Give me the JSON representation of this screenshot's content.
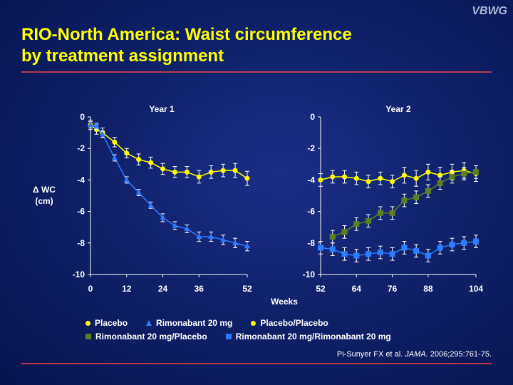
{
  "header": {
    "logo": "VBWG",
    "title_line1": "RIO-North America: Waist circumference",
    "title_line2": "by treatment assignment"
  },
  "colors": {
    "title": "#ffff00",
    "placebo": "#ffff00",
    "rimonabant": "#2e7cff",
    "rimo_placebo": "#5c7f22",
    "rule": "#b43a4a"
  },
  "chart_data": [
    {
      "type": "line",
      "title": "Year 1",
      "ylabel": "Δ WC\n(cm)",
      "xlabel": "",
      "xlim": [
        0,
        52
      ],
      "ylim": [
        -10,
        0
      ],
      "x_ticks": [
        "0",
        "12",
        "24",
        "36",
        "52"
      ],
      "y_ticks": [
        "0",
        "-2",
        "-4",
        "-6",
        "-8",
        "-10"
      ],
      "series": [
        {
          "name": "Placebo",
          "marker": "circle",
          "color": "#ffff00",
          "x": [
            0,
            2,
            4,
            8,
            12,
            16,
            20,
            24,
            28,
            32,
            36,
            40,
            44,
            48,
            52
          ],
          "y": [
            -0.5,
            -0.8,
            -1.0,
            -1.6,
            -2.3,
            -2.7,
            -2.9,
            -3.3,
            -3.5,
            -3.5,
            -3.8,
            -3.5,
            -3.4,
            -3.4,
            -3.9
          ],
          "err": [
            0.3,
            0.3,
            0.3,
            0.3,
            0.3,
            0.35,
            0.35,
            0.35,
            0.35,
            0.35,
            0.4,
            0.4,
            0.4,
            0.45,
            0.45
          ]
        },
        {
          "name": "Rimonabant 20 mg",
          "marker": "triangle",
          "color": "#2e7cff",
          "x": [
            0,
            2,
            4,
            8,
            12,
            16,
            20,
            24,
            28,
            32,
            36,
            40,
            44,
            48,
            52
          ],
          "y": [
            -0.5,
            -0.6,
            -1.1,
            -2.6,
            -4.0,
            -4.8,
            -5.6,
            -6.4,
            -6.9,
            -7.1,
            -7.6,
            -7.6,
            -7.8,
            -8.0,
            -8.2
          ],
          "err": [
            0.2,
            0.2,
            0.2,
            0.2,
            0.2,
            0.2,
            0.2,
            0.25,
            0.25,
            0.25,
            0.3,
            0.3,
            0.3,
            0.3,
            0.3
          ]
        }
      ]
    },
    {
      "type": "line",
      "title": "Year 2",
      "xlabel": "Weeks",
      "ylabel": "",
      "xlim": [
        52,
        104
      ],
      "ylim": [
        -10,
        0
      ],
      "x_ticks": [
        "52",
        "64",
        "76",
        "88",
        "104"
      ],
      "y_ticks": [
        "0",
        "-2",
        "-4",
        "-6",
        "-8",
        "-10"
      ],
      "series": [
        {
          "name": "Placebo/Placebo",
          "marker": "circle",
          "color": "#ffff00",
          "x": [
            52,
            56,
            60,
            64,
            68,
            72,
            76,
            80,
            84,
            88,
            92,
            96,
            100,
            104
          ],
          "y": [
            -4.0,
            -3.8,
            -3.8,
            -3.9,
            -4.1,
            -3.9,
            -4.1,
            -3.7,
            -3.9,
            -3.5,
            -3.7,
            -3.5,
            -3.4,
            -3.6
          ],
          "err": [
            0.4,
            0.4,
            0.4,
            0.4,
            0.4,
            0.4,
            0.4,
            0.5,
            0.5,
            0.5,
            0.5,
            0.5,
            0.5,
            0.5
          ]
        },
        {
          "name": "Rimonabant 20 mg/Placebo",
          "marker": "square",
          "color": "#5c7f22",
          "x": [
            56,
            60,
            64,
            68,
            72,
            76,
            80,
            84,
            88,
            92,
            96,
            100,
            104
          ],
          "y": [
            -7.6,
            -7.3,
            -6.8,
            -6.6,
            -6.1,
            -6.1,
            -5.3,
            -5.1,
            -4.7,
            -4.2,
            -3.8,
            -3.6,
            -3.5
          ],
          "err": [
            0.4,
            0.4,
            0.4,
            0.4,
            0.4,
            0.4,
            0.4,
            0.4,
            0.4,
            0.4,
            0.4,
            0.4,
            0.4
          ]
        },
        {
          "name": "Rimonabant 20 mg/Rimonabant 20 mg",
          "marker": "square",
          "color": "#2e7cff",
          "x": [
            52,
            56,
            60,
            64,
            68,
            72,
            76,
            80,
            84,
            88,
            92,
            96,
            100,
            104
          ],
          "y": [
            -8.3,
            -8.4,
            -8.7,
            -8.8,
            -8.7,
            -8.6,
            -8.7,
            -8.3,
            -8.5,
            -8.8,
            -8.3,
            -8.1,
            -8.0,
            -7.9
          ],
          "err": [
            0.4,
            0.4,
            0.4,
            0.4,
            0.4,
            0.4,
            0.4,
            0.4,
            0.4,
            0.4,
            0.4,
            0.4,
            0.4,
            0.4
          ]
        }
      ]
    }
  ],
  "legend": {
    "placebo": "Placebo",
    "rimonabant": "Rimonabant 20 mg",
    "placebo_placebo": "Placebo/Placebo",
    "rimo_placebo": "Rimonabant 20 mg/Placebo",
    "rimo_rimo": "Rimonabant 20 mg/Rimonabant 20 mg"
  },
  "citation": {
    "authors": "Pi-Sunyer FX et al.",
    "journal": "JAMA.",
    "details": "2006;295:761-75."
  }
}
